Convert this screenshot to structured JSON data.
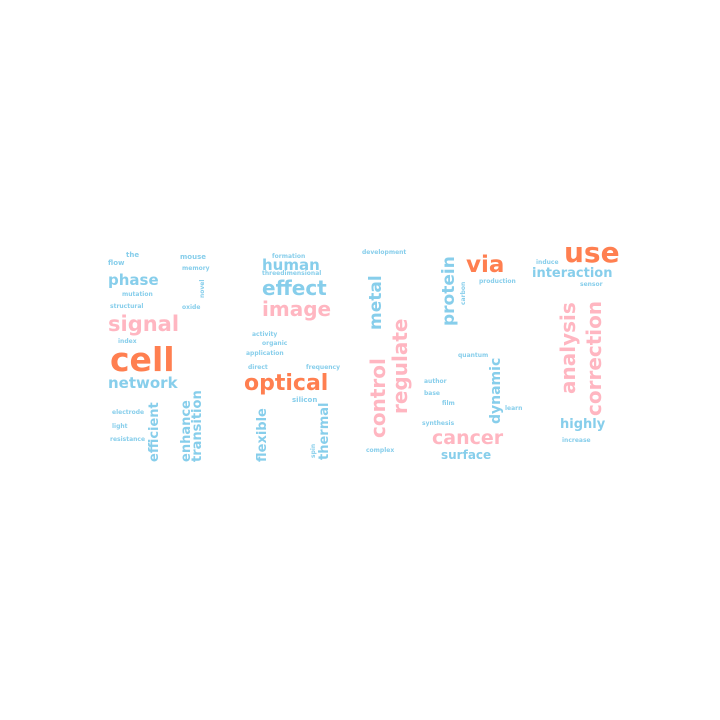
{
  "colors": {
    "blue": "#87ceeb",
    "pink": "#ffb6c1",
    "orange": "#ff7f50"
  },
  "words": {
    "the": "the",
    "mouse": "mouse",
    "flow": "flow",
    "memory": "memory",
    "phase": "phase",
    "mutation": "mutation",
    "novel": "novel",
    "structural": "structural",
    "oxide": "oxide",
    "signal": "signal",
    "index": "index",
    "cell": "cell",
    "network": "network",
    "electrode": "electrode",
    "light": "light",
    "resistance": "resistance",
    "efficient": "efficient",
    "enhance": "enhance",
    "transition": "transition",
    "formation": "formation",
    "human": "human",
    "threedimensional": "threedimensional",
    "effect": "effect",
    "image": "image",
    "activity": "activity",
    "organic": "organic",
    "application": "application",
    "direct": "direct",
    "frequency": "frequency",
    "optical": "optical",
    "silicon": "silicon",
    "flexible": "flexible",
    "spin": "spin",
    "thermal": "thermal",
    "development": "development",
    "metal": "metal",
    "regulate": "regulate",
    "control": "control",
    "complex": "complex",
    "protein": "protein",
    "via": "via",
    "carbon": "carbon",
    "production": "production",
    "quantum": "quantum",
    "author": "author",
    "base": "base",
    "film": "film",
    "dynamic": "dynamic",
    "learn": "learn",
    "synthesis": "synthesis",
    "cancer": "cancer",
    "surface": "surface",
    "use": "use",
    "induce": "induce",
    "interaction": "interaction",
    "sensor": "sensor",
    "analysis": "analysis",
    "correction": "correction",
    "highly": "highly",
    "increase": "increase"
  }
}
